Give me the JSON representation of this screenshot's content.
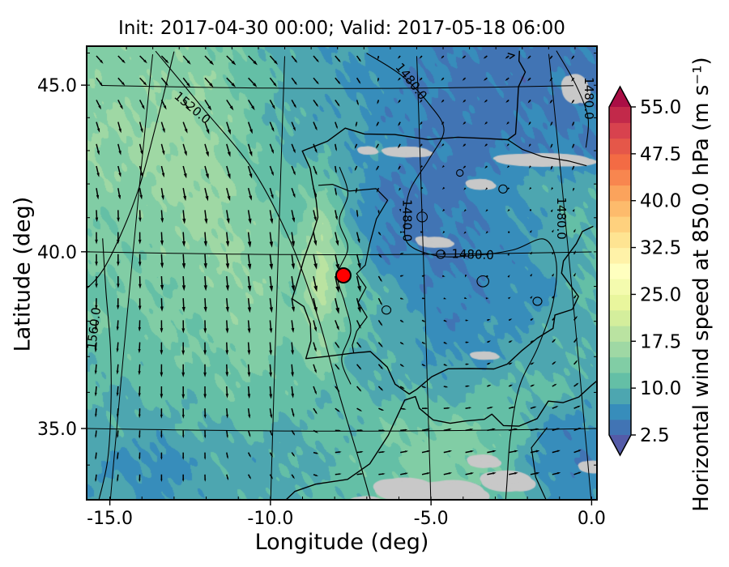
{
  "chart_data": {
    "type": "heatmap",
    "title": "Init: 2017-04-30 00:00; Valid: 2017-05-18 06:00",
    "xlabel": "Longitude (deg)",
    "ylabel": "Latitude (deg)",
    "xlim": [
      -16.3,
      0.9
    ],
    "ylim": [
      32.9,
      46.1
    ],
    "xticks": [
      -15.0,
      -10.0,
      -5.0,
      0.0
    ],
    "xtick_labels": [
      "-15.0",
      "-10.0",
      "-5.0",
      "0.0"
    ],
    "yticks": [
      45.0,
      40.0,
      35.0
    ],
    "ytick_labels": [
      "45.0",
      "40.0",
      "35.0"
    ],
    "grid": true,
    "colorbar": {
      "label": "Horizontal wind speed at 850.0 hPa (m s⁻¹)",
      "ticks": [
        2.5,
        10.0,
        17.5,
        25.0,
        32.5,
        40.0,
        47.5,
        55.0
      ],
      "tick_labels": [
        "2.5",
        "10.0",
        "17.5",
        "25.0",
        "32.5",
        "40.0",
        "47.5",
        "55.0"
      ],
      "vmin": 2.5,
      "vmax": 55.0,
      "step": 2.5,
      "extend": "both",
      "colormap": "Spectral_r",
      "colormap_anchors": [
        "#5e4fa2",
        "#3288bd",
        "#66c2a5",
        "#abdda4",
        "#e6f598",
        "#ffffbf",
        "#fee08b",
        "#fdae61",
        "#f46d43",
        "#d53e4f",
        "#9e0142"
      ]
    },
    "marker": {
      "lon": -7.75,
      "lat": 39.4,
      "color": "#ff0000",
      "edge": "#000000"
    },
    "terrain_mask_color": "#c8c8c8",
    "wind_speed_grid": {
      "lon_start": -15.5,
      "lon_step": 1.0,
      "lat_start": 46.0,
      "lat_step": -1.0,
      "values": [
        [
          14,
          14,
          14,
          13,
          11.5,
          10,
          8.5,
          8,
          7.5,
          7,
          6,
          5.5,
          5,
          4.5,
          4,
          4,
          4.5
        ],
        [
          14,
          14.5,
          15,
          14,
          12,
          10,
          9,
          8,
          7.5,
          6.5,
          5.5,
          5,
          4.5,
          4,
          4,
          4,
          4.5
        ],
        [
          15,
          15.5,
          16,
          15,
          13,
          10.5,
          9,
          8.5,
          8,
          6.5,
          5,
          4.5,
          4,
          4,
          4.5,
          5,
          5
        ],
        [
          15,
          16,
          16,
          15,
          13,
          11,
          9.5,
          9,
          8,
          7,
          5.5,
          4.5,
          4,
          4.5,
          5,
          5.5,
          5
        ],
        [
          14,
          15,
          16,
          16,
          14,
          12,
          11,
          13,
          8,
          5.5,
          4.5,
          4,
          4.5,
          6,
          7.5,
          9,
          9
        ],
        [
          13,
          14,
          15,
          16,
          15,
          13,
          12,
          16,
          9,
          5,
          4,
          4.5,
          5,
          6,
          7,
          9,
          10
        ],
        [
          13,
          13,
          14,
          15,
          15,
          14,
          13,
          19,
          11,
          6,
          5,
          4.5,
          5,
          6,
          7,
          9,
          10
        ],
        [
          12,
          13,
          13,
          14,
          15,
          14,
          13,
          18,
          12,
          9,
          7,
          5,
          5.5,
          6,
          6,
          8,
          10
        ],
        [
          12,
          12,
          13,
          13,
          14,
          14,
          13,
          16,
          11,
          10,
          8,
          6,
          6,
          7,
          8,
          9,
          10
        ],
        [
          11,
          11,
          12,
          12,
          13,
          13,
          12,
          14,
          10,
          9,
          9,
          7,
          7,
          8,
          9,
          10,
          9
        ],
        [
          10,
          10,
          11,
          11,
          12,
          12,
          11,
          11,
          10,
          10,
          10,
          9,
          10,
          11,
          11,
          10,
          9
        ],
        [
          9,
          9,
          9,
          10,
          10,
          10,
          10,
          10,
          11,
          12,
          13,
          13,
          13,
          12,
          8,
          6,
          7
        ],
        [
          8,
          7,
          6,
          8,
          9,
          9,
          9,
          10,
          11,
          12,
          13,
          14,
          13,
          11,
          7,
          5,
          6
        ],
        [
          8,
          8,
          7,
          8,
          9,
          9,
          10,
          10,
          11,
          12,
          13,
          13,
          12,
          11,
          8,
          6,
          7
        ]
      ]
    },
    "wind_vectors": [
      [
        -15.5,
        46.1,
        4,
        -4
      ],
      [
        -12,
        45.8,
        5,
        -5
      ],
      [
        -8.5,
        45.5,
        3,
        -3.5
      ],
      [
        -5,
        45.5,
        -1.5,
        -1.5
      ],
      [
        -2,
        45.8,
        -2,
        -1.5
      ],
      [
        0.5,
        45.5,
        -1.5,
        -2
      ],
      [
        -15.5,
        43,
        1.5,
        -6
      ],
      [
        -12,
        43,
        2,
        -7
      ],
      [
        -9.5,
        43,
        2,
        -5
      ],
      [
        -6.5,
        43,
        -1.5,
        -2.5
      ],
      [
        -3,
        43,
        -1.5,
        -1.5
      ],
      [
        0.5,
        43,
        -1,
        -2.5
      ],
      [
        -15.5,
        40.5,
        0,
        -6.5
      ],
      [
        -13,
        40,
        0.5,
        -8
      ],
      [
        -10.5,
        40,
        1,
        -8.5
      ],
      [
        -7.8,
        39.4,
        2,
        -9
      ],
      [
        -5.5,
        39.8,
        2,
        0.8
      ],
      [
        -3.5,
        40.5,
        -1,
        -1
      ],
      [
        -1,
        40,
        1,
        1.5
      ],
      [
        0.5,
        40,
        1,
        2
      ],
      [
        -15.5,
        37,
        -0.5,
        -5.5
      ],
      [
        -13,
        37,
        0,
        -7
      ],
      [
        -10,
        37,
        0.5,
        -7
      ],
      [
        -7.5,
        37,
        2.5,
        -3
      ],
      [
        -5,
        37.5,
        2,
        -1
      ],
      [
        -2.5,
        37,
        2,
        1
      ],
      [
        0.5,
        37.5,
        2,
        2.5
      ],
      [
        -15.5,
        34,
        -0.5,
        -4
      ],
      [
        -13,
        34,
        0,
        -4
      ],
      [
        -10,
        33.5,
        1.5,
        -2.5
      ],
      [
        -7.5,
        34,
        3.5,
        0.5
      ],
      [
        -5,
        34,
        4.5,
        1
      ],
      [
        -2.5,
        34,
        5,
        1
      ],
      [
        0.5,
        34.5,
        4,
        1.5
      ],
      [
        -4.5,
        41.8,
        -0.8,
        -0.8
      ],
      [
        -2,
        42,
        -1,
        -1
      ]
    ],
    "contours": {
      "levels": [
        1480.0,
        1520.0,
        1560.0
      ],
      "paths": [
        {
          "level": 1520.0,
          "pts": [
            [
              -14.9,
              46.1
            ],
            [
              -13.0,
              44.4
            ],
            [
              -11.0,
              42.5
            ],
            [
              -9.6,
              40.4
            ],
            [
              -8.6,
              38.2
            ],
            [
              -7.9,
              36.1
            ],
            [
              -7.2,
              34.1
            ],
            [
              -6.8,
              32.85
            ]
          ]
        },
        {
          "level": 1520.0,
          "pts": [
            [
              -14.2,
              46.1
            ],
            [
              -14.6,
              43.9
            ],
            [
              -15.1,
              41.6
            ],
            [
              -15.9,
              39.6
            ],
            [
              -16.6,
              38.8
            ]
          ]
        },
        {
          "level": 1560.0,
          "pts": [
            [
              -16.1,
              40.4
            ],
            [
              -15.8,
              38.9
            ],
            [
              -15.45,
              37.25
            ],
            [
              -15.25,
              35.6
            ],
            [
              -15.2,
              34.1
            ],
            [
              -15.4,
              32.85
            ]
          ]
        },
        {
          "level": 1480.0,
          "pts": [
            [
              -6.9,
              46.1
            ],
            [
              -5.6,
              45.4
            ],
            [
              -4.6,
              44.5
            ],
            [
              -4.1,
              43.7
            ],
            [
              -4.7,
              42.8
            ],
            [
              -5.4,
              41.9
            ],
            [
              -5.6,
              41.0
            ],
            [
              -5.5,
              40.3
            ],
            [
              -4.5,
              39.95
            ],
            [
              -3.3,
              39.95
            ],
            [
              -1.9,
              40.1
            ],
            [
              -0.8,
              40.4
            ],
            [
              -0.45,
              39.7
            ],
            [
              -0.7,
              38.5
            ],
            [
              -1.3,
              37.3
            ],
            [
              -2.0,
              36.2
            ],
            [
              -2.4,
              34.8
            ],
            [
              -2.6,
              33.5
            ],
            [
              -2.7,
              32.85
            ]
          ]
        },
        {
          "level": 1480.0,
          "pts": [
            [
              0.3,
              46.1
            ],
            [
              0.9,
              45.0
            ],
            [
              1.2,
              44.0
            ],
            [
              1.0,
              43.1
            ]
          ]
        },
        {
          "level": 1480.0,
          "pts": [
            [
              -7.9,
              42.6
            ],
            [
              -7.6,
              41.8
            ],
            [
              -7.9,
              41.0
            ],
            [
              -7.6,
              40.2
            ],
            [
              -7.95,
              39.4
            ],
            [
              -7.7,
              38.6
            ],
            [
              -7.5,
              37.8
            ],
            [
              -7.8,
              37.0
            ],
            [
              -7.5,
              36.3
            ]
          ]
        }
      ],
      "loops": [
        [
          -5.0,
          41.1,
          0.18
        ],
        [
          -4.4,
          40.0,
          0.15
        ],
        [
          -3.0,
          39.2,
          0.2
        ],
        [
          -2.1,
          41.9,
          0.15
        ],
        [
          -6.3,
          38.4,
          0.15
        ],
        [
          -1.2,
          38.6,
          0.15
        ],
        [
          -3.6,
          42.4,
          0.12
        ]
      ],
      "labels": [
        {
          "text": "1520.0",
          "lon": -13.35,
          "lat": 44.35,
          "rot": 40
        },
        {
          "text": "1480.0",
          "lon": -5.25,
          "lat": 45.2,
          "rot": 52
        },
        {
          "text": "1480.0",
          "lon": -5.55,
          "lat": 41.0,
          "rot": 90
        },
        {
          "text": "1480.0",
          "lon": -3.3,
          "lat": 39.97,
          "rot": 2
        },
        {
          "text": "1480.0",
          "lon": -0.15,
          "lat": 41.0,
          "rot": 90
        },
        {
          "text": "1480.0",
          "lon": 1.3,
          "lat": 44.6,
          "rot": 90
        },
        {
          "text": "1560.0",
          "lon": -16.05,
          "lat": 37.8,
          "rot": -83
        }
      ]
    },
    "coastlines": [
      [
        [
          -1.1,
          46.12
        ],
        [
          -1.15,
          45.8
        ],
        [
          -0.95,
          45.45
        ],
        [
          -1.25,
          45.0
        ],
        [
          -1.35,
          44.4
        ],
        [
          -1.5,
          43.55
        ],
        [
          -1.8,
          43.38
        ],
        [
          -2.6,
          43.43
        ],
        [
          -3.6,
          43.48
        ],
        [
          -4.7,
          43.42
        ],
        [
          -5.9,
          43.58
        ],
        [
          -7.0,
          43.6
        ],
        [
          -7.7,
          43.78
        ],
        [
          -8.35,
          43.38
        ],
        [
          -9.25,
          43.08
        ],
        [
          -8.95,
          42.55
        ],
        [
          -8.85,
          42.1
        ],
        [
          -8.72,
          41.6
        ],
        [
          -8.65,
          41.1
        ],
        [
          -8.82,
          40.6
        ],
        [
          -9.1,
          39.9
        ],
        [
          -9.35,
          39.1
        ],
        [
          -9.48,
          38.72
        ],
        [
          -9.08,
          38.5
        ],
        [
          -8.85,
          38.0
        ],
        [
          -8.82,
          37.52
        ],
        [
          -8.98,
          37.02
        ],
        [
          -8.3,
          37.08
        ],
        [
          -7.4,
          37.18
        ],
        [
          -6.85,
          37.22
        ],
        [
          -6.3,
          36.78
        ],
        [
          -6.05,
          36.3
        ],
        [
          -5.6,
          36.02
        ],
        [
          -5.35,
          36.15
        ],
        [
          -4.85,
          36.5
        ],
        [
          -4.3,
          36.72
        ],
        [
          -3.6,
          36.72
        ],
        [
          -2.8,
          36.7
        ],
        [
          -2.35,
          36.83
        ],
        [
          -1.85,
          37.2
        ],
        [
          -1.3,
          37.55
        ],
        [
          -0.75,
          37.82
        ],
        [
          -0.65,
          38.2
        ],
        [
          -0.05,
          38.35
        ],
        [
          0.2,
          38.72
        ],
        [
          -0.3,
          39.4
        ],
        [
          -0.2,
          39.75
        ],
        [
          0.3,
          40.25
        ],
        [
          0.55,
          40.6
        ],
        [
          0.95,
          40.75
        ]
      ],
      [
        [
          -9.85,
          32.85
        ],
        [
          -9.25,
          33.35
        ],
        [
          -8.6,
          33.55
        ],
        [
          -7.6,
          33.68
        ],
        [
          -6.9,
          34.1
        ],
        [
          -6.3,
          34.88
        ],
        [
          -5.95,
          35.5
        ],
        [
          -5.75,
          35.85
        ],
        [
          -5.4,
          35.95
        ],
        [
          -5.28,
          35.62
        ],
        [
          -4.85,
          35.3
        ],
        [
          -4.3,
          35.2
        ],
        [
          -3.8,
          35.26
        ],
        [
          -3.2,
          35.3
        ],
        [
          -2.95,
          35.44
        ],
        [
          -2.6,
          35.12
        ],
        [
          -2.1,
          35.1
        ],
        [
          -1.5,
          35.3
        ],
        [
          -1.1,
          35.78
        ],
        [
          -0.63,
          35.73
        ],
        [
          -0.1,
          35.88
        ],
        [
          0.35,
          36.2
        ],
        [
          0.9,
          36.55
        ]
      ],
      [
        [
          -1.55,
          46.05
        ],
        [
          -1.3,
          45.98
        ],
        [
          -1.5,
          45.88
        ]
      ]
    ],
    "borders": [
      [
        [
          -8.65,
          42.05
        ],
        [
          -8.15,
          42.08
        ],
        [
          -7.55,
          41.88
        ],
        [
          -6.6,
          41.95
        ],
        [
          -6.2,
          41.6
        ],
        [
          -6.6,
          41.05
        ],
        [
          -6.85,
          40.3
        ],
        [
          -7.0,
          39.7
        ],
        [
          -7.3,
          39.45
        ],
        [
          -6.98,
          39.05
        ],
        [
          -7.25,
          38.62
        ],
        [
          -6.95,
          38.2
        ],
        [
          -7.3,
          37.8
        ],
        [
          -7.45,
          37.4
        ],
        [
          -7.4,
          37.18
        ]
      ],
      [
        [
          -1.8,
          43.38
        ],
        [
          -1.3,
          43.08
        ],
        [
          -0.6,
          42.85
        ],
        [
          0.35,
          42.7
        ],
        [
          0.95,
          42.55
        ]
      ],
      [
        [
          -1.2,
          35.05
        ],
        [
          -1.75,
          34.5
        ],
        [
          -1.68,
          33.7
        ],
        [
          -1.3,
          32.85
        ]
      ]
    ],
    "terrain_mask_patches": [
      [
        -0.6,
        42.75,
        1.7,
        0.16
      ],
      [
        -5.5,
        43.05,
        0.85,
        0.13
      ],
      [
        -6.9,
        43.1,
        0.35,
        0.1
      ],
      [
        -2.9,
        42.05,
        0.5,
        0.13
      ],
      [
        -4.6,
        40.35,
        0.6,
        0.13
      ],
      [
        -3.1,
        37.08,
        0.45,
        0.1
      ],
      [
        -5.8,
        33.4,
        0.95,
        0.28
      ],
      [
        -4.3,
        33.3,
        1.0,
        0.3
      ],
      [
        -2.6,
        33.6,
        0.8,
        0.25
      ],
      [
        -7.0,
        33.0,
        0.55,
        0.2
      ],
      [
        -3.3,
        34.15,
        0.5,
        0.16
      ],
      [
        0.15,
        33.95,
        0.45,
        0.15
      ],
      [
        0.85,
        44.9,
        0.5,
        0.35
      ],
      [
        -5.0,
        40.42,
        0.25,
        0.09
      ]
    ],
    "graticule": {
      "lons": [
        -15,
        -10,
        -5,
        0
      ],
      "lats": [
        35,
        40,
        45
      ]
    }
  }
}
